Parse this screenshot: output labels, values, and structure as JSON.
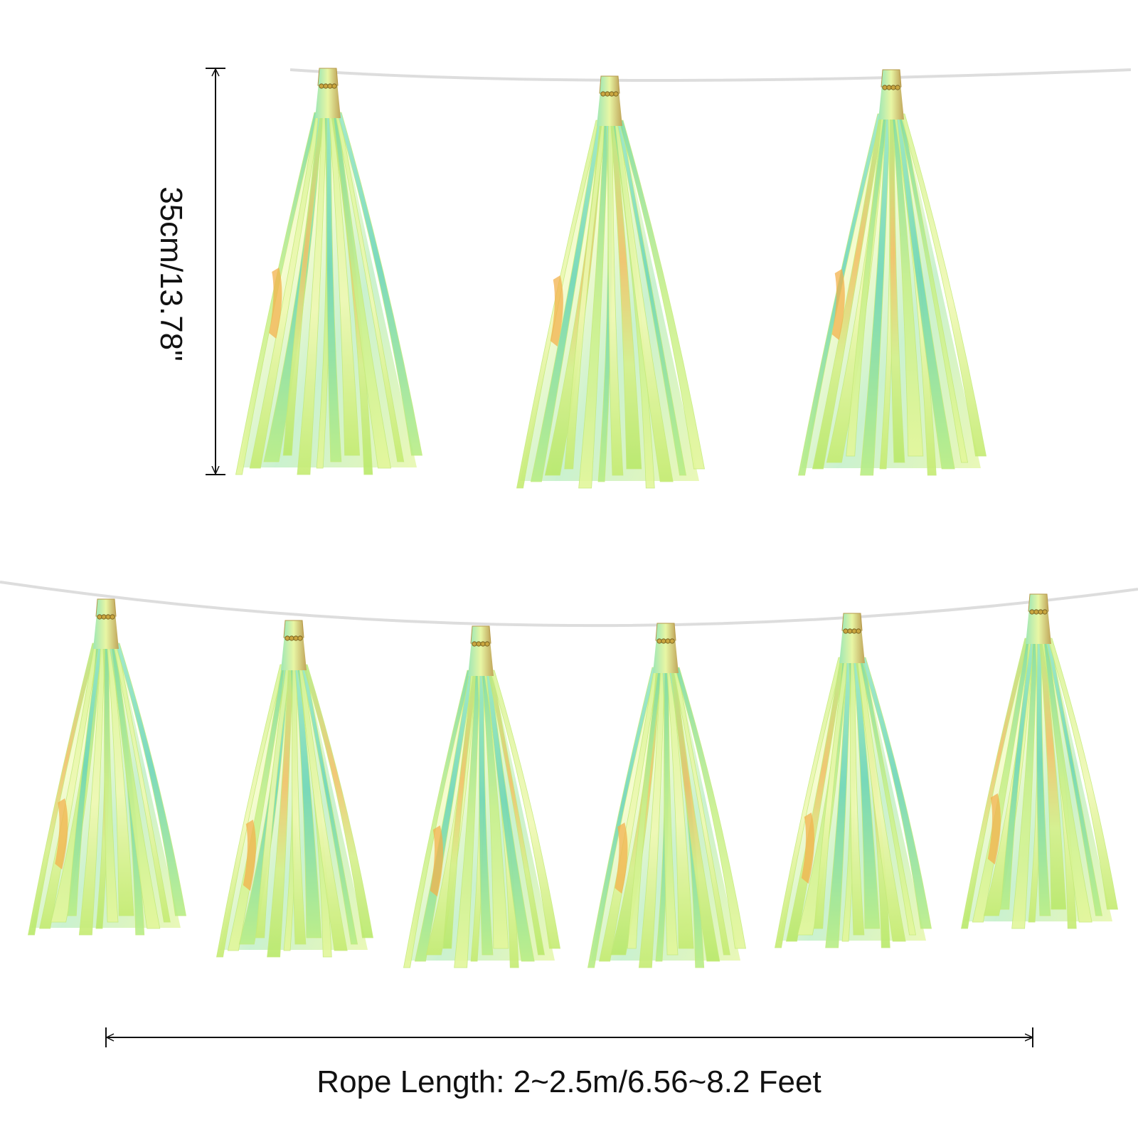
{
  "product": {
    "name": "iridescent green foil tassel garland",
    "tassel_count_top_row": 3,
    "tassel_count_bottom_row": 6
  },
  "dimensions": {
    "tassel_length_label": "35cm/13.78\"",
    "rope_length_label": "Rope Length: 2~2.5m/6.56~8.2 Feet"
  },
  "colors": {
    "background": "#ffffff",
    "foil_light": "#e9f7a0",
    "foil_green": "#b8ec6a",
    "foil_mint": "#8fe6b4",
    "foil_teal": "#6fd8c8",
    "foil_orange": "#f4b24a",
    "rope": "#dcdcdc",
    "knot": "#c9a640",
    "dimension_line": "#111111"
  }
}
